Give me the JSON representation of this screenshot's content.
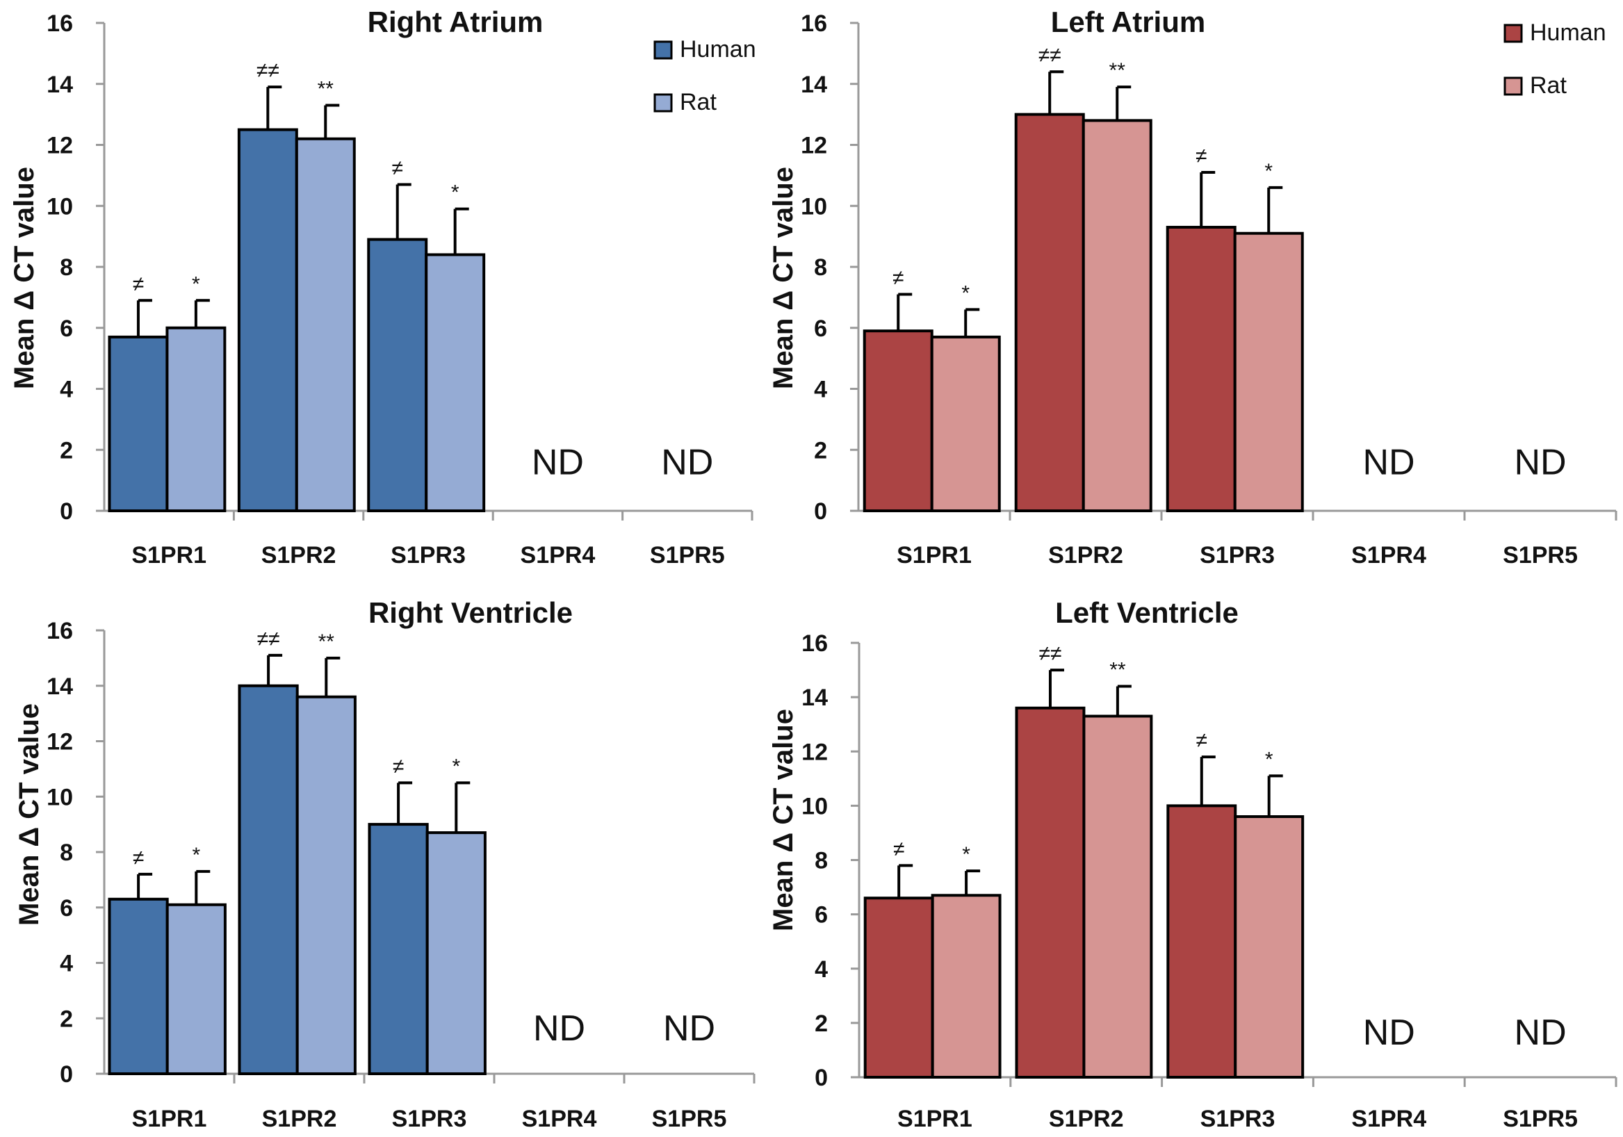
{
  "chart_data": [
    {
      "id": "right-atrium",
      "type": "bar",
      "title": "Right Atrium",
      "ylabel": "Mean Δ CT value",
      "xlabel": "",
      "ylim": [
        0,
        16
      ],
      "yticks": [
        "0",
        "2",
        "4",
        "6",
        "8",
        "10",
        "12",
        "14",
        "16"
      ],
      "categories": [
        "S1PR1",
        "S1PR2",
        "S1PR3",
        "S1PR4",
        "S1PR5"
      ],
      "series": [
        {
          "name": "Human",
          "color": "#4472a8",
          "values": [
            5.7,
            12.5,
            8.9,
            null,
            null
          ],
          "errors": [
            1.2,
            1.4,
            1.8,
            null,
            null
          ],
          "marks": [
            "≠",
            "≠≠",
            "≠",
            "",
            ""
          ]
        },
        {
          "name": "Rat",
          "color": "#95abd4",
          "values": [
            6.0,
            12.2,
            8.4,
            null,
            null
          ],
          "errors": [
            0.9,
            1.1,
            1.5,
            null,
            null
          ],
          "marks": [
            "*",
            "**",
            "*",
            "",
            ""
          ]
        }
      ],
      "nd_labels": [
        "",
        "",
        "",
        "ND",
        "ND"
      ],
      "legend": true
    },
    {
      "id": "left-atrium",
      "type": "bar",
      "title": "Left Atrium",
      "ylabel": "Mean Δ CT value",
      "xlabel": "",
      "ylim": [
        0,
        16
      ],
      "yticks": [
        "0",
        "2",
        "4",
        "6",
        "8",
        "10",
        "12",
        "14",
        "16"
      ],
      "categories": [
        "S1PR1",
        "S1PR2",
        "S1PR3",
        "S1PR4",
        "S1PR5"
      ],
      "series": [
        {
          "name": "Human",
          "color": "#ab4444",
          "values": [
            5.9,
            13.0,
            9.3,
            null,
            null
          ],
          "errors": [
            1.2,
            1.4,
            1.8,
            null,
            null
          ],
          "marks": [
            "≠",
            "≠≠",
            "≠",
            "",
            ""
          ]
        },
        {
          "name": "Rat",
          "color": "#d69593",
          "values": [
            5.7,
            12.8,
            9.1,
            null,
            null
          ],
          "errors": [
            0.9,
            1.1,
            1.5,
            null,
            null
          ],
          "marks": [
            "*",
            "**",
            "*",
            "",
            ""
          ]
        }
      ],
      "nd_labels": [
        "",
        "",
        "",
        "ND",
        "ND"
      ],
      "legend": true
    },
    {
      "id": "right-ventricle",
      "type": "bar",
      "title": "Right Ventricle",
      "ylabel": "Mean Δ CT value",
      "xlabel": "",
      "ylim": [
        0,
        16
      ],
      "yticks": [
        "0",
        "2",
        "4",
        "6",
        "8",
        "10",
        "12",
        "14",
        "16"
      ],
      "categories": [
        "S1PR1",
        "S1PR2",
        "S1PR3",
        "S1PR4",
        "S1PR5"
      ],
      "series": [
        {
          "name": "Human",
          "color": "#4472a8",
          "values": [
            6.3,
            14.0,
            9.0,
            null,
            null
          ],
          "errors": [
            0.9,
            1.1,
            1.5,
            null,
            null
          ],
          "marks": [
            "≠",
            "≠≠",
            "≠",
            "",
            ""
          ]
        },
        {
          "name": "Rat",
          "color": "#95abd4",
          "values": [
            6.1,
            13.6,
            8.7,
            null,
            null
          ],
          "errors": [
            1.2,
            1.4,
            1.8,
            null,
            null
          ],
          "marks": [
            "*",
            "**",
            "*",
            "",
            ""
          ]
        }
      ],
      "nd_labels": [
        "",
        "",
        "",
        "ND",
        "ND"
      ],
      "legend": false
    },
    {
      "id": "left-ventricle",
      "type": "bar",
      "title": "Left Ventricle",
      "ylabel": "Mean Δ CT value",
      "xlabel": "",
      "ylim": [
        0,
        16
      ],
      "yticks": [
        "0",
        "2",
        "4",
        "6",
        "8",
        "10",
        "12",
        "14",
        "16"
      ],
      "categories": [
        "S1PR1",
        "S1PR2",
        "S1PR3",
        "S1PR4",
        "S1PR5"
      ],
      "series": [
        {
          "name": "Human",
          "color": "#ab4444",
          "values": [
            6.6,
            13.6,
            10.0,
            null,
            null
          ],
          "errors": [
            1.2,
            1.4,
            1.8,
            null,
            null
          ],
          "marks": [
            "≠",
            "≠≠",
            "≠",
            "",
            ""
          ]
        },
        {
          "name": "Rat",
          "color": "#d69593",
          "values": [
            6.7,
            13.3,
            9.6,
            null,
            null
          ],
          "errors": [
            0.9,
            1.1,
            1.5,
            null,
            null
          ],
          "marks": [
            "*",
            "**",
            "*",
            "",
            ""
          ]
        }
      ],
      "nd_labels": [
        "",
        "",
        "",
        "ND",
        "ND"
      ],
      "legend": false
    }
  ]
}
